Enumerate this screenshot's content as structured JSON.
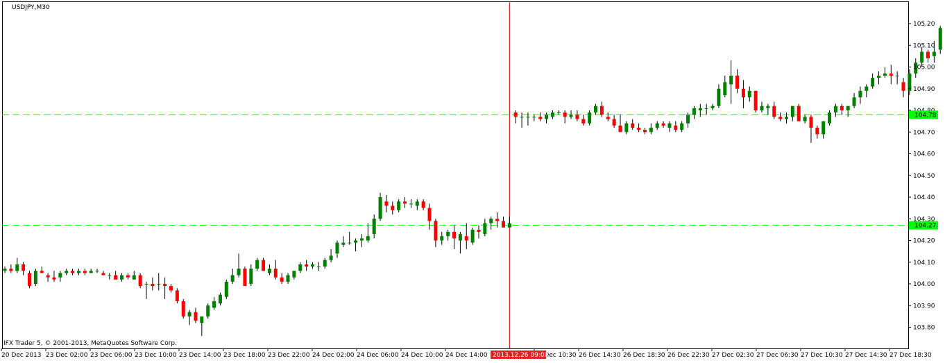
{
  "chart_data": {
    "type": "candlestick",
    "title": "USDJPY,M30",
    "footer": "IFX Trader 5, © 2001-2013, MetaQuotes Software Corp.",
    "ylim": [
      103.75,
      105.25
    ],
    "y_ticks": [
      "105.20",
      "105.10",
      "105.00",
      "104.90",
      "104.80",
      "104.70",
      "104.60",
      "104.50",
      "104.40",
      "104.30",
      "104.20",
      "104.10",
      "104.00",
      "103.90",
      "103.80"
    ],
    "x_ticks": [
      "20 Dec 2013",
      "23 Dec 02:00",
      "23 Dec 06:00",
      "23 Dec 10:00",
      "23 Dec 14:00",
      "23 Dec 18:00",
      "23 Dec 22:00",
      "24 Dec 02:00",
      "24 Dec 06:00",
      "24 Dec 10:00",
      "24 Dec 14:00",
      "26 Dec 10:30",
      "26 Dec 14:30",
      "26 Dec 18:30",
      "26 Dec 22:30",
      "27 Dec 02:30",
      "27 Dec 06:30",
      "27 Dec 10:30",
      "27 Dec 14:30",
      "27 Dec 18:30"
    ],
    "price_lines": [
      {
        "label": "104.78",
        "value": 104.78
      },
      {
        "label": "104.27",
        "value": 104.27
      }
    ],
    "crosshair": {
      "label": "2013.12.26 09:00",
      "bar_index": 82
    },
    "colors": {
      "up": "#008000",
      "down": "#ff0000",
      "grid_line": "#00ff00",
      "crosshair": "#cc0000",
      "background": "#ffffff"
    },
    "series": [
      {
        "values": [
          [
            104.06,
            104.08,
            104.05,
            104.07
          ],
          [
            104.07,
            104.09,
            104.05,
            104.06
          ],
          [
            104.06,
            104.12,
            104.05,
            104.09
          ],
          [
            104.09,
            104.1,
            104.04,
            104.06
          ],
          [
            104.05,
            104.06,
            103.98,
            103.99
          ],
          [
            104.0,
            104.07,
            103.99,
            104.06
          ],
          [
            104.06,
            104.08,
            104.05,
            104.05
          ],
          [
            104.04,
            104.05,
            104.01,
            104.03
          ],
          [
            104.03,
            104.06,
            104.01,
            104.02
          ],
          [
            104.03,
            104.06,
            104.01,
            104.05
          ],
          [
            104.05,
            104.07,
            104.04,
            104.06
          ],
          [
            104.06,
            104.07,
            104.04,
            104.05
          ],
          [
            104.05,
            104.07,
            104.04,
            104.06
          ],
          [
            104.06,
            104.07,
            104.04,
            104.05
          ],
          [
            104.05,
            104.07,
            104.05,
            104.06
          ],
          [
            104.06,
            104.07,
            104.05,
            104.06
          ],
          [
            104.05,
            104.06,
            104.04,
            104.04
          ],
          [
            104.04,
            104.05,
            104.02,
            104.04
          ],
          [
            104.04,
            104.06,
            104.02,
            104.02
          ],
          [
            104.02,
            104.05,
            104.01,
            104.04
          ],
          [
            104.04,
            104.05,
            104.02,
            104.03
          ],
          [
            104.02,
            104.06,
            104.02,
            104.04
          ],
          [
            104.04,
            104.05,
            103.98,
            103.99
          ],
          [
            104.0,
            104.01,
            103.93,
            104.0
          ],
          [
            104.0,
            104.03,
            103.97,
            103.99
          ],
          [
            104.0,
            104.05,
            103.97,
            104.0
          ],
          [
            104.0,
            104.03,
            103.93,
            103.99
          ],
          [
            103.99,
            104.0,
            103.96,
            103.97
          ],
          [
            103.97,
            103.98,
            103.91,
            103.92
          ],
          [
            103.92,
            103.93,
            103.84,
            103.85
          ],
          [
            103.85,
            103.88,
            103.81,
            103.87
          ],
          [
            103.87,
            103.89,
            103.82,
            103.83
          ],
          [
            103.82,
            103.84,
            103.76,
            103.85
          ],
          [
            103.85,
            103.91,
            103.84,
            103.9
          ],
          [
            103.89,
            103.94,
            103.88,
            103.92
          ],
          [
            103.91,
            103.96,
            103.9,
            103.95
          ],
          [
            103.94,
            104.02,
            103.93,
            104.01
          ],
          [
            104.01,
            104.07,
            104.0,
            104.04
          ],
          [
            104.04,
            104.14,
            104.03,
            104.07
          ],
          [
            104.07,
            104.08,
            103.99,
            103.99
          ],
          [
            104.0,
            104.09,
            103.99,
            104.07
          ],
          [
            104.07,
            104.12,
            104.06,
            104.11
          ],
          [
            104.11,
            104.12,
            104.06,
            104.06
          ],
          [
            104.05,
            104.09,
            104.04,
            104.07
          ],
          [
            104.07,
            104.11,
            104.02,
            104.03
          ],
          [
            104.03,
            104.05,
            104.0,
            104.01
          ],
          [
            104.01,
            104.05,
            104.0,
            104.04
          ],
          [
            104.03,
            104.06,
            104.02,
            104.06
          ],
          [
            104.06,
            104.1,
            104.05,
            104.09
          ],
          [
            104.09,
            104.11,
            104.06,
            104.08
          ],
          [
            104.08,
            104.1,
            104.07,
            104.09
          ],
          [
            104.08,
            104.1,
            104.06,
            104.08
          ],
          [
            104.08,
            104.12,
            104.07,
            104.11
          ],
          [
            104.11,
            104.16,
            104.1,
            104.13
          ],
          [
            104.14,
            104.2,
            104.12,
            104.19
          ],
          [
            104.18,
            104.22,
            104.17,
            104.19
          ],
          [
            104.19,
            104.24,
            104.18,
            104.19
          ],
          [
            104.19,
            104.21,
            104.15,
            104.2
          ],
          [
            104.2,
            104.23,
            104.17,
            104.21
          ],
          [
            104.2,
            104.28,
            104.19,
            104.22
          ],
          [
            104.23,
            104.32,
            104.21,
            104.3
          ],
          [
            104.3,
            104.42,
            104.29,
            104.4
          ],
          [
            104.38,
            104.41,
            104.33,
            104.36
          ],
          [
            104.36,
            104.38,
            104.32,
            104.34
          ],
          [
            104.34,
            104.39,
            104.33,
            104.38
          ],
          [
            104.38,
            104.4,
            104.35,
            104.37
          ],
          [
            104.37,
            104.39,
            104.35,
            104.37
          ],
          [
            104.36,
            104.39,
            104.34,
            104.38
          ],
          [
            104.38,
            104.39,
            104.34,
            104.35
          ],
          [
            104.35,
            104.37,
            104.25,
            104.29
          ],
          [
            104.29,
            104.3,
            104.17,
            104.2
          ],
          [
            104.2,
            104.24,
            104.18,
            104.22
          ],
          [
            104.22,
            104.25,
            104.2,
            104.24
          ],
          [
            104.24,
            104.27,
            104.16,
            104.21
          ],
          [
            104.2,
            104.24,
            104.14,
            104.23
          ],
          [
            104.22,
            104.28,
            104.16,
            104.2
          ],
          [
            104.19,
            104.26,
            104.18,
            104.25
          ],
          [
            104.25,
            104.27,
            104.21,
            104.24
          ],
          [
            104.23,
            104.3,
            104.22,
            104.28
          ],
          [
            104.28,
            104.31,
            104.25,
            104.3
          ],
          [
            104.3,
            104.33,
            104.26,
            104.29
          ],
          [
            104.29,
            104.31,
            104.26,
            104.26
          ],
          [
            104.26,
            104.31,
            104.26,
            104.28
          ]
        ]
      },
      {
        "values": [
          [
            104.79,
            104.8,
            104.74,
            104.77
          ],
          [
            104.77,
            104.79,
            104.72,
            104.77
          ],
          [
            104.77,
            104.79,
            104.73,
            104.77
          ],
          [
            104.77,
            104.78,
            104.75,
            104.77
          ],
          [
            104.77,
            104.79,
            104.75,
            104.76
          ],
          [
            104.76,
            104.79,
            104.74,
            104.78
          ],
          [
            104.77,
            104.8,
            104.76,
            104.79
          ],
          [
            104.79,
            104.8,
            104.78,
            104.79
          ],
          [
            104.79,
            104.8,
            104.74,
            104.77
          ],
          [
            104.77,
            104.8,
            104.76,
            104.78
          ],
          [
            104.78,
            104.8,
            104.75,
            104.76
          ],
          [
            104.76,
            104.78,
            104.73,
            104.74
          ],
          [
            104.74,
            104.8,
            104.73,
            104.79
          ],
          [
            104.79,
            104.83,
            104.78,
            104.82
          ],
          [
            104.82,
            104.84,
            104.77,
            104.78
          ],
          [
            104.77,
            104.79,
            104.75,
            104.76
          ],
          [
            104.76,
            104.78,
            104.72,
            104.73
          ],
          [
            104.73,
            104.78,
            104.7,
            104.7
          ],
          [
            104.7,
            104.75,
            104.69,
            104.74
          ],
          [
            104.74,
            104.76,
            104.71,
            104.72
          ],
          [
            104.72,
            104.74,
            104.7,
            104.71
          ],
          [
            104.71,
            104.72,
            104.69,
            104.7
          ],
          [
            104.7,
            104.74,
            104.69,
            104.72
          ],
          [
            104.72,
            104.75,
            104.71,
            104.74
          ],
          [
            104.74,
            104.75,
            104.72,
            104.73
          ],
          [
            104.72,
            104.75,
            104.7,
            104.74
          ],
          [
            104.73,
            104.75,
            104.7,
            104.71
          ],
          [
            104.71,
            104.75,
            104.7,
            104.74
          ],
          [
            104.74,
            104.79,
            104.72,
            104.78
          ],
          [
            104.78,
            104.82,
            104.76,
            104.81
          ],
          [
            104.8,
            104.83,
            104.77,
            104.81
          ],
          [
            104.81,
            104.83,
            104.78,
            104.81
          ],
          [
            104.81,
            104.83,
            104.8,
            104.82
          ],
          [
            104.82,
            104.92,
            104.81,
            104.9
          ],
          [
            104.87,
            104.96,
            104.86,
            104.93
          ],
          [
            104.92,
            105.03,
            104.83,
            104.96
          ],
          [
            104.96,
            104.99,
            104.88,
            104.9
          ],
          [
            104.9,
            104.94,
            104.81,
            104.86
          ],
          [
            104.86,
            104.91,
            104.84,
            104.89
          ],
          [
            104.89,
            104.89,
            104.79,
            104.8
          ],
          [
            104.8,
            104.84,
            104.79,
            104.82
          ],
          [
            104.81,
            104.83,
            104.78,
            104.82
          ],
          [
            104.82,
            104.84,
            104.76,
            104.77
          ],
          [
            104.77,
            104.79,
            104.75,
            104.76
          ],
          [
            104.76,
            104.79,
            104.74,
            104.77
          ],
          [
            104.77,
            104.82,
            104.75,
            104.82
          ],
          [
            104.82,
            104.83,
            104.75,
            104.75
          ],
          [
            104.75,
            104.78,
            104.74,
            104.77
          ],
          [
            104.77,
            104.78,
            104.65,
            104.72
          ],
          [
            104.72,
            104.73,
            104.67,
            104.69
          ],
          [
            104.69,
            104.75,
            104.67,
            104.75
          ],
          [
            104.74,
            104.8,
            104.73,
            104.79
          ],
          [
            104.79,
            104.83,
            104.77,
            104.82
          ],
          [
            104.82,
            104.83,
            104.78,
            104.8
          ],
          [
            104.8,
            104.82,
            104.77,
            104.82
          ],
          [
            104.82,
            104.88,
            104.81,
            104.86
          ],
          [
            104.86,
            104.91,
            104.83,
            104.89
          ],
          [
            104.89,
            104.92,
            104.86,
            104.91
          ],
          [
            104.91,
            104.97,
            104.9,
            104.95
          ],
          [
            104.95,
            104.98,
            104.92,
            104.96
          ],
          [
            104.96,
            105.0,
            104.95,
            104.97
          ],
          [
            104.97,
            105.01,
            104.92,
            104.96
          ],
          [
            104.96,
            104.98,
            104.92,
            104.96
          ],
          [
            104.93,
            104.95,
            104.86,
            104.89
          ],
          [
            104.89,
            104.99,
            104.87,
            104.97
          ],
          [
            104.97,
            105.04,
            104.95,
            105.02
          ],
          [
            105.02,
            105.09,
            105.0,
            105.07
          ],
          [
            105.07,
            105.08,
            105.02,
            105.04
          ],
          [
            105.05,
            105.12,
            105.02,
            105.07
          ],
          [
            105.08,
            105.19,
            105.06,
            105.18
          ]
        ]
      }
    ]
  }
}
